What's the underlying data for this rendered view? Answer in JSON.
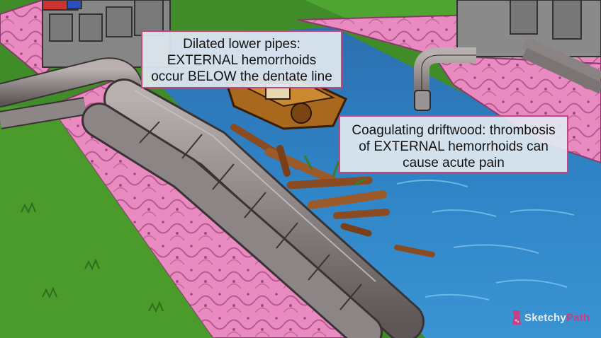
{
  "callouts": {
    "pipes": {
      "lines": [
        "Dilated lower pipes:",
        "EXTERNAL hemorrhoids",
        "occur BELOW the dentate line"
      ]
    },
    "driftwood": {
      "lines": [
        "Coagulating driftwood: thrombosis",
        "of EXTERNAL hemorrhoids can",
        "cause acute pain"
      ]
    }
  },
  "logo": {
    "part1": "Sketchy",
    "part2": "Path"
  },
  "colors": {
    "water": "#2f7fc0",
    "water_light": "#5ab0e4",
    "grass": "#4a9a2c",
    "pink_wall": "#e98ac0",
    "pipe": "#8c8585",
    "stone": "#8a8a8a",
    "wood": "#8a4a22",
    "callout_border": "#c2477e",
    "callout_bg": "#e0e8f0"
  }
}
